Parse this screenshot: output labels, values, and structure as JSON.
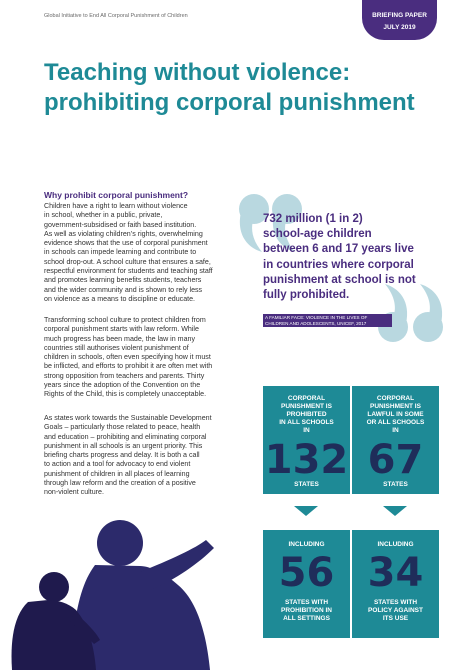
{
  "header": {
    "org_name": "Global Initiative to End All Corporal Punishment of Children",
    "badge_line1": "BRIEFING PAPER",
    "badge_line2": "JULY 2019"
  },
  "title": {
    "line1": "Teaching without violence:",
    "line2": "prohibiting corporal punishment"
  },
  "section": {
    "heading": "Why prohibit corporal punishment?",
    "paragraph1": [
      "Children have a right to learn without violence",
      "in school, whether in a public, private,",
      "government-subsidised or faith based institution.",
      "As well as violating children’s rights, overwhelming",
      "evidence shows that the use of corporal punishment",
      "in schools can impede learning and contribute to",
      "school drop-out. A school culture that ensures a safe,",
      "respectful environment for students and teaching staff",
      "and promotes learning benefits students, teachers",
      "and the wider community and is shown to rely less",
      "on violence as a means to discipline or educate."
    ],
    "paragraph2": [
      "Transforming school culture to protect children from",
      "corporal punishment starts with law reform. While",
      "much progress has been made, the law in many",
      "countries still authorises violent punishment of",
      "children in schools, often even specifying how it must",
      "be inflicted, and efforts to prohibit it are often met with",
      "strong opposition from teachers and parents. Thirty",
      "years since the adoption of the Convention on the",
      "Rights of the Child, this is completely unacceptable."
    ],
    "paragraph3": [
      "As states work towards the Sustainable Development",
      "Goals – particularly those related to peace, health",
      "and education – prohibiting and eliminating corporal",
      "punishment in all schools is an urgent priority. This",
      "briefing charts progress and delay. It is both a call",
      "to action and a tool for advocacy to end violent",
      "punishment of children in all places of learning",
      "through law reform and the creation of a positive",
      "non-violent culture."
    ]
  },
  "quote": {
    "lines": [
      "732 million (1 in 2)",
      "school-age children",
      "between 6 and 17 years live",
      "in countries where corporal",
      "punishment at school is not",
      "fully prohibited."
    ],
    "source_line1": "A FAMILIAR FACE: VIOLENCE IN THE LIVES OF",
    "source_line2": "CHILDREN AND ADOLESCENTS, UNICEF, 2017"
  },
  "stats": {
    "box1": {
      "cap_top": [
        "CORPORAL",
        "PUNISHMENT IS",
        "PROHIBITED",
        "IN ALL SCHOOLS",
        "IN"
      ],
      "number": "132",
      "cap_bottom": [
        "STATES"
      ]
    },
    "box2": {
      "cap_top": [
        "CORPORAL",
        "PUNISHMENT IS",
        "LAWFUL IN SOME",
        "OR ALL SCHOOLS",
        "IN"
      ],
      "number": "67",
      "cap_bottom": [
        "STATES"
      ]
    },
    "box3": {
      "cap_top": [
        "INCLUDING"
      ],
      "number": "56",
      "cap_bottom": [
        "STATES WITH",
        "PROHIBITION IN",
        "ALL SETTINGS"
      ]
    },
    "box4": {
      "cap_top": [
        "INCLUDING"
      ],
      "number": "34",
      "cap_bottom": [
        "STATES WITH",
        "POLICY AGAINST",
        "ITS USE"
      ]
    }
  },
  "colors": {
    "teal": "#1e8a96",
    "purple": "#4a2d7f",
    "navy": "#1f2d5a",
    "quote_mark": "#b9d8e0"
  }
}
